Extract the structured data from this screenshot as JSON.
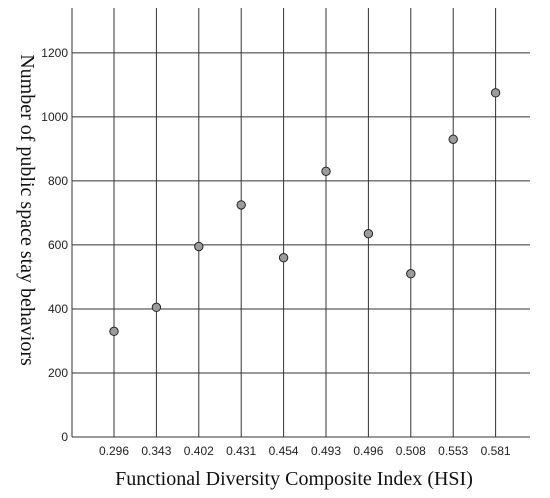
{
  "chart_data": {
    "type": "scatter",
    "title": "",
    "xlabel": "Functional Diversity Composite Index (HSI)",
    "ylabel": "Number of public space stay behaviors",
    "x_categories": [
      "0.296",
      "0.343",
      "0.402",
      "0.431",
      "0.454",
      "0.493",
      "0.496",
      "0.508",
      "0.553",
      "0.581"
    ],
    "series": [
      {
        "values": [
          330,
          405,
          595,
          725,
          560,
          830,
          635,
          510,
          930,
          1075
        ]
      }
    ],
    "y_ticks": [
      0,
      200,
      400,
      600,
      800,
      1000,
      1200
    ],
    "ylim": [
      0,
      1340
    ],
    "grid": true,
    "legend": "none"
  }
}
